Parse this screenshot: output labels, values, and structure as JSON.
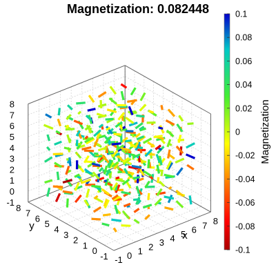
{
  "chart_data": {
    "type": "scatter",
    "subtype": "3d-quiver",
    "title_prefix": "Magnetization:",
    "title_value": "0.082448",
    "xlabel": "x",
    "ylabel": "y",
    "zlabel": "",
    "colorbar_label": "Magnetization",
    "xlim": [
      -1,
      8
    ],
    "ylim": [
      -1,
      8
    ],
    "zlim": [
      -1,
      8
    ],
    "x_ticks": [
      "-1",
      "0",
      "1",
      "2",
      "3",
      "4",
      "5",
      "6",
      "7",
      "8"
    ],
    "y_ticks": [
      "-1",
      "0",
      "1",
      "2",
      "3",
      "4",
      "5",
      "6",
      "7",
      "8"
    ],
    "z_ticks": [
      "-1",
      "0",
      "1",
      "2",
      "3",
      "4",
      "5",
      "6",
      "7",
      "8"
    ],
    "colorbar_ticks": [
      "0.1",
      "0.08",
      "0.06",
      "0.04",
      "0.02",
      "0",
      "-0.02",
      "-0.04",
      "-0.06",
      "-0.08",
      "-0.1"
    ],
    "colorbar_range": [
      -0.1,
      0.1
    ],
    "colormap": "jet (red → yellow → green → cyan → blue)",
    "grid": true,
    "lattice": {
      "nx": 8,
      "ny": 8,
      "nz": 8
    }
  }
}
